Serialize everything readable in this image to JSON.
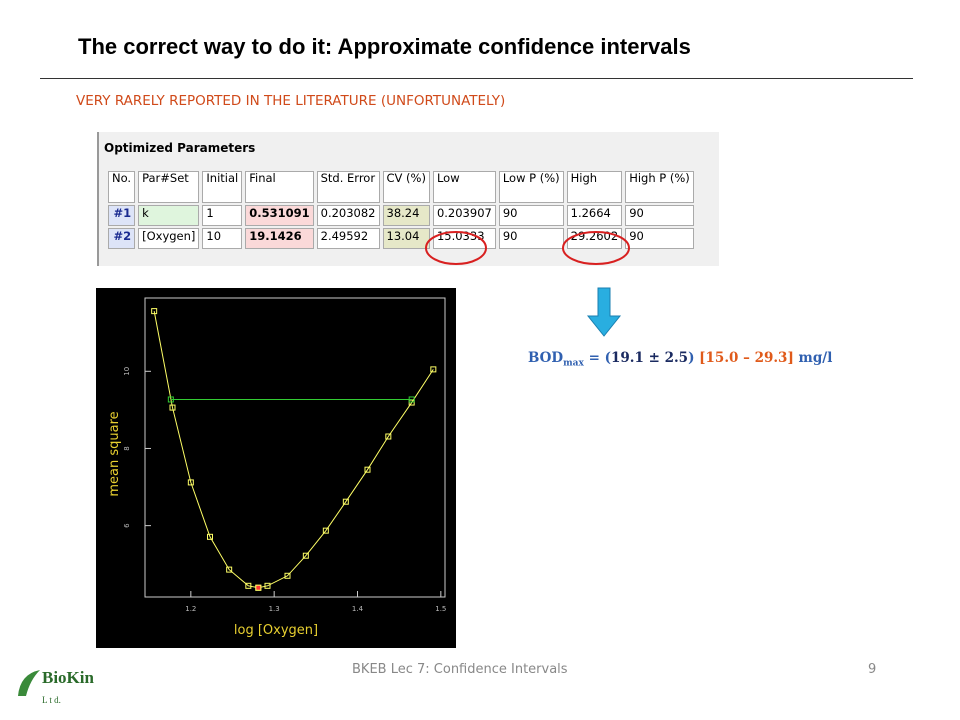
{
  "header": {
    "title": "The correct way to do it: Approximate confidence intervals",
    "subtitle": "VERY RARELY REPORTED IN THE LITERATURE (UNFORTUNATELY)"
  },
  "table": {
    "caption": "Optimized Parameters",
    "columns": [
      "No.",
      "Par#Set",
      "Initial",
      "Final",
      "Std. Error",
      "CV (%)",
      "Low",
      "Low P (%)",
      "High",
      "High P (%)"
    ],
    "rows": [
      [
        "#1",
        "k",
        "1",
        "0.531091",
        "0.203082",
        "38.24",
        "0.203907",
        "90",
        "1.2664",
        "90"
      ],
      [
        "#2",
        "[Oxygen]",
        "10",
        "19.1426",
        "2.49592",
        "13.04",
        "15.0333",
        "90",
        "29.2602",
        "90"
      ]
    ]
  },
  "result": {
    "parts": [
      "BOD",
      "max",
      "= (",
      "19.1 ± 2.5",
      ")",
      "[15.0 – 29.3]",
      "mg/l"
    ]
  },
  "chart_data": {
    "type": "line",
    "xlabel": "log [Oxygen]",
    "ylabel": "mean square",
    "xlim": [
      1.145,
      1.505
    ],
    "ylim": [
      4.15,
      11.9
    ],
    "xticks": [
      1.2,
      1.3,
      1.4,
      1.5
    ],
    "yticks": [
      6,
      8,
      10
    ],
    "series": [
      {
        "color": "#ffff66",
        "marker": true,
        "x": [
          1.156,
          1.178,
          1.2,
          1.223,
          1.246,
          1.269,
          1.281,
          1.292,
          1.316,
          1.338,
          1.362,
          1.386,
          1.412,
          1.437,
          1.465,
          1.491
        ],
        "values": [
          11.56,
          9.06,
          7.12,
          5.71,
          4.86,
          4.44,
          4.39,
          4.44,
          4.7,
          5.22,
          5.87,
          6.62,
          7.45,
          8.31,
          9.19,
          10.05
        ]
      },
      {
        "color": "#33cc33",
        "marker": true,
        "x": [
          1.176,
          1.465
        ],
        "values": [
          9.27,
          9.27
        ]
      },
      {
        "color": "#ff3333",
        "marker": true,
        "x": [
          1.281
        ],
        "values": [
          4.39
        ]
      }
    ]
  },
  "footer": {
    "text": "BKEB Lec 7: Confidence Intervals",
    "page": "9",
    "logo": "BioKin",
    "logo_sub": "L t d."
  }
}
